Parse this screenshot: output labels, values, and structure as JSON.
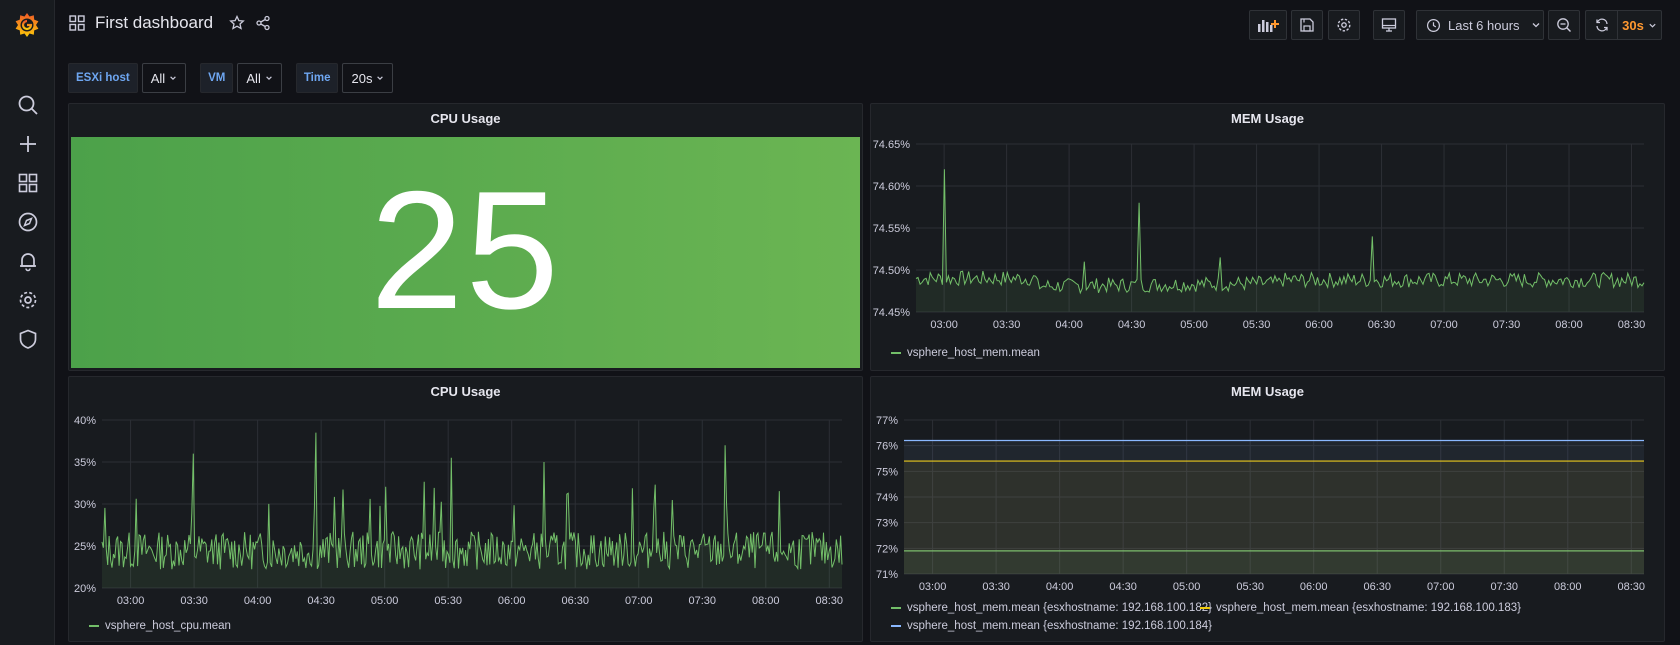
{
  "app": {
    "dashboard_title": "First dashboard"
  },
  "colors": {
    "green": "#73bf69",
    "yellow": "#f2cc0c",
    "blue": "#8ab8ff",
    "refresh_orange": "#ff9830",
    "accent_blue": "#6ea6f1"
  },
  "toolbar": {
    "time_range": "Last 6 hours",
    "refresh_interval": "30s",
    "icons": [
      "add-panel-icon",
      "save-icon",
      "gear-icon",
      "tv-mode-icon",
      "clock-icon",
      "zoom-out-icon",
      "refresh-icon"
    ]
  },
  "sidebar": {
    "icons": [
      "search-icon",
      "plus-icon",
      "dashboards-icon",
      "explore-icon",
      "alert-bell-icon",
      "gear-icon",
      "shield-icon"
    ]
  },
  "variables": [
    {
      "label": "ESXi host",
      "value": "All"
    },
    {
      "label": "VM",
      "value": "All"
    },
    {
      "label": "Time",
      "value": "20s"
    }
  ],
  "panels": {
    "cpu_stat": {
      "title": "CPU Usage",
      "value": "25"
    },
    "mem_top": {
      "title": "MEM Usage",
      "legend": "vsphere_host_mem.mean",
      "y_ticks": [
        "74.65%",
        "74.60%",
        "74.55%",
        "74.50%",
        "74.45%"
      ],
      "x_ticks": [
        "03:00",
        "03:30",
        "04:00",
        "04:30",
        "05:00",
        "05:30",
        "06:00",
        "06:30",
        "07:00",
        "07:30",
        "08:00",
        "08:30"
      ]
    },
    "cpu_graph": {
      "title": "CPU Usage",
      "legend": "vsphere_host_cpu.mean",
      "y_ticks": [
        "40%",
        "35%",
        "30%",
        "25%",
        "20%"
      ],
      "x_ticks": [
        "03:00",
        "03:30",
        "04:00",
        "04:30",
        "05:00",
        "05:30",
        "06:00",
        "06:30",
        "07:00",
        "07:30",
        "08:00",
        "08:30"
      ]
    },
    "mem_bottom": {
      "title": "MEM Usage",
      "legend": [
        "vsphere_host_mem.mean {esxhostname: 192.168.100.182}",
        "vsphere_host_mem.mean {esxhostname: 192.168.100.183}",
        "vsphere_host_mem.mean {esxhostname: 192.168.100.184}"
      ],
      "y_ticks": [
        "77%",
        "76%",
        "75%",
        "74%",
        "73%",
        "72%",
        "71%"
      ],
      "x_ticks": [
        "03:00",
        "03:30",
        "04:00",
        "04:30",
        "05:00",
        "05:30",
        "06:00",
        "06:30",
        "07:00",
        "07:30",
        "08:00",
        "08:30"
      ]
    }
  },
  "chart_data": [
    {
      "type": "line",
      "title": "MEM Usage",
      "ylim": [
        74.45,
        74.65
      ],
      "series": [
        {
          "name": "vsphere_host_mem.mean",
          "baseline": 74.485,
          "spikes": [
            74.62,
            74.58,
            74.51,
            74.515,
            74.54
          ]
        }
      ]
    },
    {
      "type": "line",
      "title": "CPU Usage",
      "ylim": [
        20,
        40
      ],
      "series": [
        {
          "name": "vsphere_host_cpu.mean",
          "baseline": 24,
          "spikes": [
            38.5,
            37,
            36,
            35.5,
            35
          ]
        }
      ]
    },
    {
      "type": "area",
      "title": "MEM Usage",
      "ylim": [
        71,
        77
      ],
      "series": [
        {
          "name": "vsphere_host_mem.mean {esxhostname: 192.168.100.182}",
          "value": 71.9
        },
        {
          "name": "vsphere_host_mem.mean {esxhostname: 192.168.100.183}",
          "value": 75.4
        },
        {
          "name": "vsphere_host_mem.mean {esxhostname: 192.168.100.184}",
          "value": 76.2
        }
      ]
    }
  ]
}
